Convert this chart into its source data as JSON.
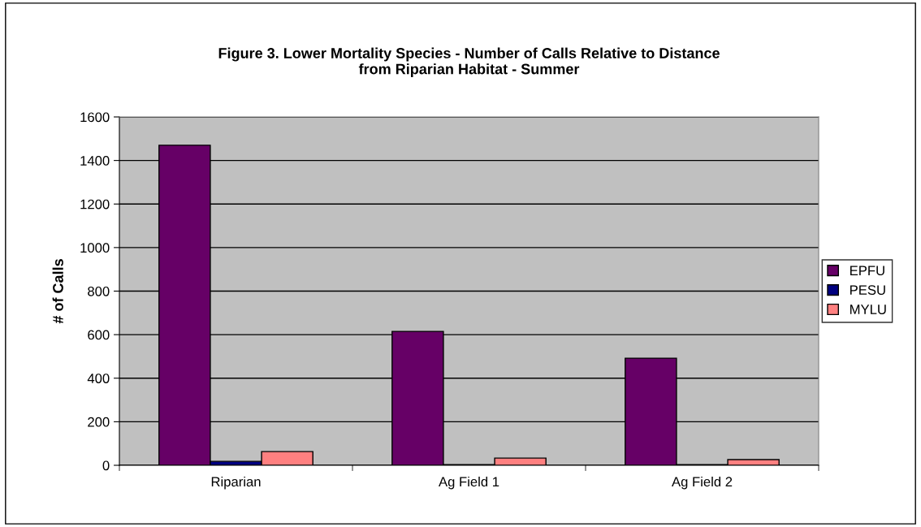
{
  "chart_data": {
    "type": "bar",
    "title": "Figure 3. Lower Mortality Species - Number of Calls Relative to Distance\nfrom Riparian Habitat - Summer",
    "ylabel": "# of Calls",
    "categories": [
      "Riparian",
      "Ag Field 1",
      "Ag Field 2"
    ],
    "series": [
      {
        "name": "EPFU",
        "color": "#660066",
        "values": [
          1470,
          615,
          492
        ]
      },
      {
        "name": "PESU",
        "color": "#000080",
        "values": [
          18,
          3,
          3
        ]
      },
      {
        "name": "MYLU",
        "color": "#ff8080",
        "values": [
          63,
          33,
          26
        ]
      }
    ],
    "ylim": [
      0,
      1600
    ],
    "yticks": [
      0,
      200,
      400,
      600,
      800,
      1000,
      1200,
      1400,
      1600
    ],
    "grid": "y",
    "legend": "right"
  }
}
